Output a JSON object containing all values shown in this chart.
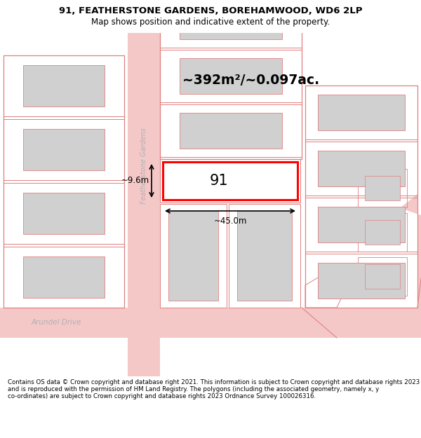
{
  "title": "91, FEATHERSTONE GARDENS, BOREHAMWOOD, WD6 2LP",
  "subtitle": "Map shows position and indicative extent of the property.",
  "footer": "Contains OS data © Crown copyright and database right 2021. This information is subject to Crown copyright and database rights 2023 and is reproduced with the permission of HM Land Registry. The polygons (including the associated geometry, namely x, y co-ordinates) are subject to Crown copyright and database rights 2023 Ordnance Survey 100026316.",
  "bg_color": "#ffffff",
  "map_bg": "#ffffff",
  "footer_bg": "#f0f0f0",
  "street_color": "#f5c8c8",
  "building_outline_color": "#e08080",
  "building_fill_color": "#d0d0d0",
  "highlight_color": "#ff0000",
  "text_color": "#000000",
  "street_label_color": "#b0b0b0",
  "area_text": "~392m²/~0.097ac.",
  "plot_label": "91",
  "dim_width": "~45.0m",
  "dim_height": "~9.6m",
  "title_fontsize": 9.5,
  "subtitle_fontsize": 8.5,
  "footer_fontsize": 6.2
}
